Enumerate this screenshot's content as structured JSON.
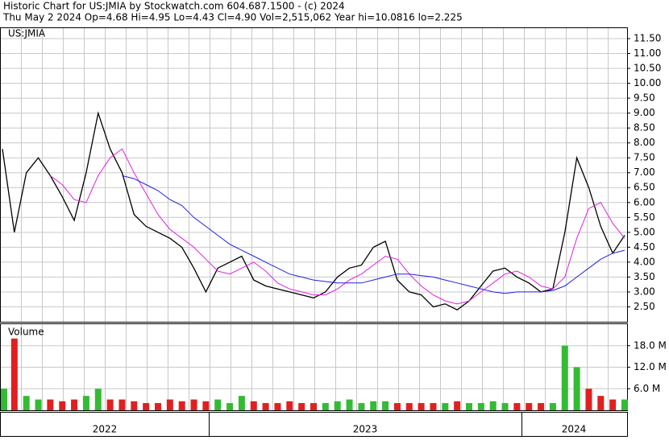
{
  "header": {
    "title": "Historic Chart for US:JMIA by Stockwatch.com 604.687.1500 - (c) 2024",
    "subtitle": "Thu May  2 2024  Op=4.68  Hi=4.95  Lo=4.43  Cl=4.90  Vol=2,515,062  Year hi=10.0816  lo=2.225"
  },
  "chart_data": [
    {
      "type": "line",
      "label": "US:JMIA",
      "series": [
        {
          "color": "#000000",
          "values": [
            7.8,
            5.0,
            7.0,
            7.5,
            6.9,
            6.2,
            5.4,
            7.0,
            9.0,
            7.8,
            7.0,
            5.6,
            5.2,
            5.0,
            4.8,
            4.5,
            3.8,
            3.0,
            3.8,
            4.0,
            4.2,
            3.4,
            3.2,
            3.1,
            3.0,
            2.9,
            2.8,
            3.0,
            3.5,
            3.8,
            3.9,
            4.5,
            4.7,
            3.4,
            3.0,
            2.9,
            2.5,
            2.6,
            2.4,
            2.7,
            3.2,
            3.7,
            3.8,
            3.5,
            3.3,
            3.0,
            3.1,
            5.0,
            7.5,
            6.5,
            5.2,
            4.3,
            4.9
          ]
        },
        {
          "color": "#e020e0",
          "values": [
            null,
            null,
            null,
            null,
            6.9,
            6.6,
            6.1,
            6.0,
            6.9,
            7.5,
            7.8,
            7.0,
            6.3,
            5.6,
            5.1,
            4.8,
            4.5,
            4.1,
            3.7,
            3.6,
            3.8,
            4.0,
            3.7,
            3.3,
            3.1,
            3.0,
            2.9,
            2.9,
            3.1,
            3.4,
            3.6,
            3.9,
            4.2,
            4.1,
            3.6,
            3.2,
            2.9,
            2.7,
            2.6,
            2.7,
            3.0,
            3.3,
            3.6,
            3.7,
            3.5,
            3.2,
            3.1,
            3.5,
            4.8,
            5.8,
            6.0,
            5.3,
            4.8
          ]
        },
        {
          "color": "#2020e0",
          "values": [
            null,
            null,
            null,
            null,
            null,
            null,
            null,
            null,
            null,
            null,
            6.9,
            6.8,
            6.6,
            6.4,
            6.1,
            5.9,
            5.5,
            5.2,
            4.9,
            4.6,
            4.4,
            4.2,
            4.0,
            3.8,
            3.6,
            3.5,
            3.4,
            3.35,
            3.3,
            3.3,
            3.3,
            3.4,
            3.5,
            3.6,
            3.6,
            3.55,
            3.5,
            3.4,
            3.3,
            3.2,
            3.1,
            3.0,
            2.95,
            3.0,
            3.0,
            3.0,
            3.05,
            3.2,
            3.5,
            3.8,
            4.1,
            4.3,
            4.4
          ]
        }
      ],
      "ylim": [
        2.0,
        11.85
      ],
      "yticks": [
        {
          "value": 2.5,
          "label": "2.50"
        },
        {
          "value": 3,
          "label": "3.00"
        },
        {
          "value": 3.5,
          "label": "3.50"
        },
        {
          "value": 4,
          "label": "4.00"
        },
        {
          "value": 4.5,
          "label": "4.50"
        },
        {
          "value": 5,
          "label": "5.00"
        },
        {
          "value": 5.5,
          "label": "5.50"
        },
        {
          "value": 6,
          "label": "6.00"
        },
        {
          "value": 6.5,
          "label": "6.50"
        },
        {
          "value": 7,
          "label": "7.00"
        },
        {
          "value": 7.5,
          "label": "7.50"
        },
        {
          "value": 8,
          "label": "8.00"
        },
        {
          "value": 8.5,
          "label": "8.50"
        },
        {
          "value": 9,
          "label": "9.00"
        },
        {
          "value": 9.5,
          "label": "9.50"
        },
        {
          "value": 10,
          "label": "10.00"
        },
        {
          "value": 10.5,
          "label": "10.50"
        },
        {
          "value": 11,
          "label": "11.00"
        },
        {
          "value": 11.5,
          "label": "11.50"
        }
      ],
      "grid": true
    },
    {
      "type": "bar",
      "label": "Volume",
      "up_color": "#33bb33",
      "down_color": "#e02020",
      "values": [
        6,
        20,
        4,
        3,
        3,
        2.5,
        3,
        4,
        6,
        3,
        3,
        2.5,
        2,
        2,
        3,
        2.5,
        3,
        2.5,
        3,
        2,
        4,
        2.5,
        2,
        2,
        2.5,
        2,
        2,
        2,
        2.5,
        3,
        2,
        2.5,
        2.5,
        2,
        2,
        2,
        2,
        2,
        2.5,
        2,
        2,
        2.5,
        2,
        2,
        2,
        2,
        2,
        18,
        12,
        6,
        4,
        3,
        3
      ],
      "ylim": [
        0,
        24
      ],
      "yticks": [
        {
          "value": 6,
          "label": "6.0 M"
        },
        {
          "value": 12,
          "label": "12.0 M"
        },
        {
          "value": 18,
          "label": "18.0 M"
        }
      ],
      "grid": true,
      "x_labels": [
        "2022",
        "2023",
        "2024"
      ]
    }
  ]
}
